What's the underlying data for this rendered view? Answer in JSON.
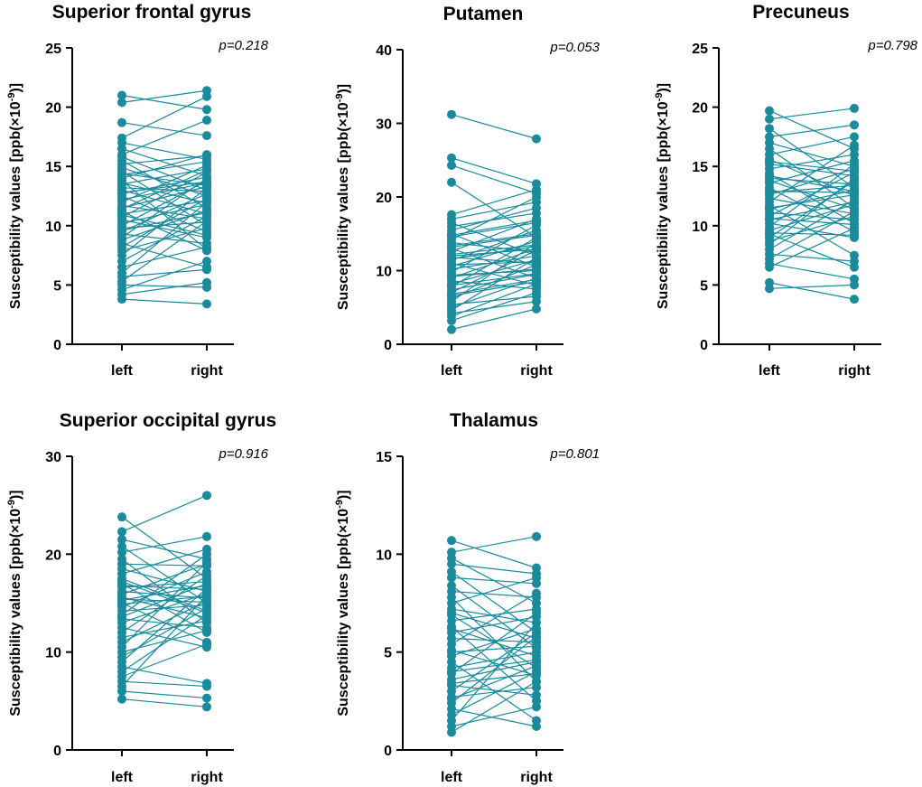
{
  "chart_data": [
    {
      "type": "scatter",
      "title": "Superior frontal gyrus",
      "p_label": "p=0.218",
      "ylabel_main": "Susceptibility values [ppb(×10",
      "ylabel_sup": "-9",
      "ylabel_end": ")]",
      "ylim": [
        0,
        25
      ],
      "yticks": [
        "0",
        "5",
        "10",
        "15",
        "20",
        "25"
      ],
      "categories": [
        "left",
        "right"
      ],
      "color": "#1a8a9c",
      "pairs": [
        [
          21.0,
          19.8
        ],
        [
          20.4,
          21.4
        ],
        [
          18.7,
          17.6
        ],
        [
          17.4,
          20.9
        ],
        [
          17.0,
          15.6
        ],
        [
          16.5,
          14.2
        ],
        [
          16.0,
          18.9
        ],
        [
          15.8,
          13.0
        ],
        [
          15.5,
          11.5
        ],
        [
          15.2,
          15.9
        ],
        [
          14.9,
          12.5
        ],
        [
          14.6,
          10.0
        ],
        [
          14.3,
          15.4
        ],
        [
          14.0,
          16.0
        ],
        [
          13.8,
          8.0
        ],
        [
          13.5,
          14.8
        ],
        [
          13.2,
          12.9
        ],
        [
          13.0,
          11.0
        ],
        [
          12.7,
          14.1
        ],
        [
          12.5,
          9.5
        ],
        [
          12.2,
          13.6
        ],
        [
          12.0,
          15.1
        ],
        [
          11.7,
          10.6
        ],
        [
          11.5,
          13.3
        ],
        [
          11.2,
          7.9
        ],
        [
          11.0,
          12.1
        ],
        [
          10.7,
          14.5
        ],
        [
          10.5,
          9.0
        ],
        [
          10.2,
          11.8
        ],
        [
          10.0,
          13.8
        ],
        [
          9.8,
          10.3
        ],
        [
          9.5,
          12.7
        ],
        [
          9.3,
          8.5
        ],
        [
          9.0,
          14.0
        ],
        [
          8.8,
          11.3
        ],
        [
          8.5,
          6.5
        ],
        [
          8.2,
          12.3
        ],
        [
          7.9,
          9.8
        ],
        [
          7.5,
          13.2
        ],
        [
          7.0,
          10.8
        ],
        [
          6.5,
          8.2
        ],
        [
          6.0,
          12.0
        ],
        [
          5.7,
          6.3
        ],
        [
          5.3,
          10.4
        ],
        [
          5.0,
          4.8
        ],
        [
          4.6,
          7.0
        ],
        [
          4.2,
          5.2
        ],
        [
          3.8,
          3.4
        ],
        [
          12.8,
          13.7
        ],
        [
          13.6,
          11.9
        ],
        [
          11.4,
          14.7
        ],
        [
          10.9,
          9.2
        ],
        [
          14.4,
          13.4
        ],
        [
          9.6,
          11.1
        ]
      ]
    },
    {
      "type": "scatter",
      "title": "Putamen",
      "p_label": "p=0.053",
      "ylabel_main": "Susceptibility values [ppb(×10",
      "ylabel_sup": "-9",
      "ylabel_end": ")]",
      "ylim": [
        0,
        40
      ],
      "yticks": [
        "0",
        "10",
        "20",
        "30",
        "40"
      ],
      "categories": [
        "left",
        "right"
      ],
      "color": "#1a8a9c",
      "pairs": [
        [
          31.2,
          27.9
        ],
        [
          25.3,
          21.8
        ],
        [
          24.3,
          20.5
        ],
        [
          22.0,
          14.5
        ],
        [
          17.6,
          21.0
        ],
        [
          17.0,
          19.3
        ],
        [
          16.5,
          12.0
        ],
        [
          16.0,
          17.8
        ],
        [
          15.5,
          18.5
        ],
        [
          15.0,
          10.5
        ],
        [
          14.6,
          16.5
        ],
        [
          14.2,
          20.0
        ],
        [
          13.8,
          12.5
        ],
        [
          13.4,
          15.0
        ],
        [
          13.0,
          9.0
        ],
        [
          12.6,
          17.0
        ],
        [
          12.2,
          13.5
        ],
        [
          11.8,
          11.0
        ],
        [
          11.4,
          15.5
        ],
        [
          11.0,
          8.0
        ],
        [
          10.6,
          14.0
        ],
        [
          10.2,
          12.0
        ],
        [
          9.8,
          16.2
        ],
        [
          9.4,
          10.0
        ],
        [
          9.0,
          13.0
        ],
        [
          8.6,
          7.5
        ],
        [
          8.2,
          11.5
        ],
        [
          7.8,
          14.5
        ],
        [
          7.4,
          9.5
        ],
        [
          7.0,
          12.8
        ],
        [
          6.6,
          8.5
        ],
        [
          6.2,
          10.8
        ],
        [
          5.8,
          13.8
        ],
        [
          5.4,
          6.5
        ],
        [
          5.0,
          9.0
        ],
        [
          4.6,
          11.8
        ],
        [
          4.2,
          5.8
        ],
        [
          3.8,
          8.2
        ],
        [
          3.2,
          7.0
        ],
        [
          2.0,
          4.8
        ],
        [
          12.0,
          12.9
        ],
        [
          10.8,
          11.2
        ],
        [
          9.2,
          10.2
        ],
        [
          13.2,
          14.8
        ],
        [
          8.0,
          9.6
        ],
        [
          11.6,
          13.3
        ],
        [
          6.8,
          8.8
        ],
        [
          14.8,
          16.8
        ]
      ]
    },
    {
      "type": "scatter",
      "title": "Precuneus",
      "p_label": "p=0.798",
      "ylabel_main": "Susceptibility values [ppb(×10",
      "ylabel_sup": "-9",
      "ylabel_end": ")]",
      "ylim": [
        0,
        25
      ],
      "yticks": [
        "0",
        "5",
        "10",
        "15",
        "20",
        "25"
      ],
      "categories": [
        "left",
        "right"
      ],
      "color": "#1a8a9c",
      "pairs": [
        [
          19.7,
          16.5
        ],
        [
          19.0,
          19.9
        ],
        [
          18.2,
          13.2
        ],
        [
          17.5,
          18.5
        ],
        [
          17.0,
          15.0
        ],
        [
          16.5,
          11.5
        ],
        [
          16.0,
          17.5
        ],
        [
          15.6,
          12.5
        ],
        [
          15.2,
          14.2
        ],
        [
          14.8,
          16.0
        ],
        [
          14.4,
          10.2
        ],
        [
          14.0,
          13.5
        ],
        [
          13.6,
          15.5
        ],
        [
          13.2,
          9.5
        ],
        [
          12.9,
          12.8
        ],
        [
          12.6,
          14.8
        ],
        [
          12.3,
          11.0
        ],
        [
          12.0,
          16.8
        ],
        [
          11.7,
          7.5
        ],
        [
          11.4,
          13.0
        ],
        [
          11.1,
          10.5
        ],
        [
          10.8,
          14.5
        ],
        [
          10.5,
          12.0
        ],
        [
          10.2,
          9.0
        ],
        [
          9.9,
          15.2
        ],
        [
          9.6,
          11.8
        ],
        [
          9.3,
          6.5
        ],
        [
          9.0,
          13.8
        ],
        [
          8.7,
          10.8
        ],
        [
          8.4,
          14.0
        ],
        [
          8.0,
          12.2
        ],
        [
          7.6,
          7.0
        ],
        [
          7.2,
          11.2
        ],
        [
          6.8,
          5.5
        ],
        [
          6.5,
          9.8
        ],
        [
          5.2,
          3.8
        ],
        [
          4.7,
          5.0
        ],
        [
          12.8,
          13.4
        ],
        [
          11.5,
          12.6
        ],
        [
          13.8,
          11.4
        ],
        [
          10.6,
          10.1
        ],
        [
          15.4,
          14.6
        ],
        [
          9.4,
          9.2
        ],
        [
          14.2,
          12.9
        ]
      ]
    },
    {
      "type": "scatter",
      "title": "Superior occipital gyrus",
      "p_label": "p=0.916",
      "ylabel_main": "Susceptibility values [ppb(×10",
      "ylabel_sup": "-9",
      "ylabel_end": ")]",
      "ylim": [
        0,
        30
      ],
      "yticks": [
        "0",
        "10",
        "20",
        "30"
      ],
      "categories": [
        "left",
        "right"
      ],
      "color": "#1a8a9c",
      "pairs": [
        [
          23.8,
          17.5
        ],
        [
          22.3,
          26.0
        ],
        [
          21.5,
          19.5
        ],
        [
          20.8,
          15.0
        ],
        [
          20.2,
          21.8
        ],
        [
          19.5,
          13.0
        ],
        [
          19.0,
          18.8
        ],
        [
          18.5,
          16.2
        ],
        [
          18.0,
          20.5
        ],
        [
          17.5,
          14.2
        ],
        [
          17.0,
          12.0
        ],
        [
          16.6,
          17.2
        ],
        [
          16.2,
          15.5
        ],
        [
          15.9,
          19.0
        ],
        [
          15.6,
          13.5
        ],
        [
          15.3,
          16.8
        ],
        [
          15.0,
          11.0
        ],
        [
          14.6,
          18.2
        ],
        [
          14.2,
          14.8
        ],
        [
          13.8,
          20.0
        ],
        [
          13.4,
          12.5
        ],
        [
          13.0,
          16.0
        ],
        [
          12.5,
          10.5
        ],
        [
          12.0,
          17.8
        ],
        [
          11.5,
          13.2
        ],
        [
          11.0,
          15.2
        ],
        [
          10.5,
          19.2
        ],
        [
          10.0,
          12.2
        ],
        [
          9.5,
          14.5
        ],
        [
          9.0,
          16.5
        ],
        [
          8.5,
          6.8
        ],
        [
          8.0,
          13.8
        ],
        [
          7.5,
          10.8
        ],
        [
          7.0,
          6.5
        ],
        [
          6.5,
          15.8
        ],
        [
          6.0,
          5.3
        ],
        [
          5.2,
          4.4
        ],
        [
          16.8,
          16.4
        ],
        [
          14.9,
          15.7
        ],
        [
          17.2,
          14.0
        ],
        [
          15.4,
          15.1
        ],
        [
          13.6,
          17.0
        ]
      ]
    },
    {
      "type": "scatter",
      "title": "Thalamus",
      "p_label": "p=0.801",
      "ylabel_main": "Susceptibility values [ppb(×10",
      "ylabel_sup": "-9",
      "ylabel_end": ")]",
      "ylim": [
        0,
        15
      ],
      "yticks": [
        "0",
        "5",
        "10",
        "15"
      ],
      "categories": [
        "left",
        "right"
      ],
      "color": "#1a8a9c",
      "pairs": [
        [
          10.7,
          9.3
        ],
        [
          10.1,
          10.9
        ],
        [
          9.8,
          7.5
        ],
        [
          9.5,
          9.0
        ],
        [
          9.1,
          6.0
        ],
        [
          8.8,
          8.5
        ],
        [
          8.4,
          5.2
        ],
        [
          8.1,
          7.8
        ],
        [
          7.8,
          3.5
        ],
        [
          7.5,
          8.8
        ],
        [
          7.2,
          6.5
        ],
        [
          6.9,
          4.2
        ],
        [
          6.6,
          7.2
        ],
        [
          6.3,
          2.5
        ],
        [
          6.0,
          6.8
        ],
        [
          5.7,
          5.5
        ],
        [
          5.4,
          8.0
        ],
        [
          5.1,
          3.8
        ],
        [
          4.8,
          6.2
        ],
        [
          4.5,
          1.5
        ],
        [
          4.2,
          5.0
        ],
        [
          3.9,
          7.0
        ],
        [
          3.6,
          4.5
        ],
        [
          3.3,
          2.8
        ],
        [
          3.0,
          6.0
        ],
        [
          2.7,
          3.2
        ],
        [
          2.4,
          5.8
        ],
        [
          2.1,
          1.2
        ],
        [
          1.8,
          4.0
        ],
        [
          1.5,
          6.5
        ],
        [
          1.2,
          2.2
        ],
        [
          0.9,
          3.5
        ],
        [
          5.0,
          5.3
        ],
        [
          6.2,
          4.8
        ],
        [
          4.0,
          4.6
        ],
        [
          7.0,
          5.7
        ],
        [
          3.4,
          3.9
        ],
        [
          2.6,
          4.3
        ]
      ]
    }
  ]
}
